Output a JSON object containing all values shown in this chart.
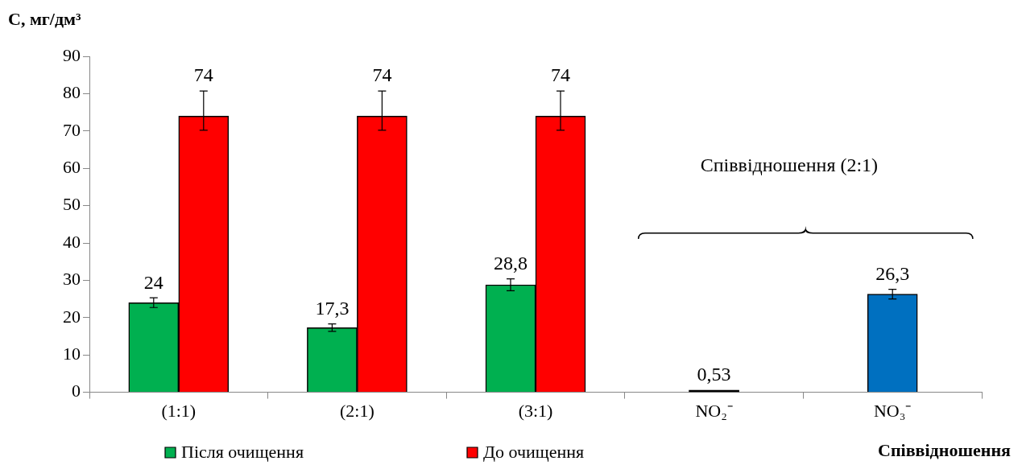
{
  "chart_data": {
    "type": "bar",
    "ylabel": "С, мг/дм³",
    "xlabel": "Співвідношення",
    "categories": [
      "(1:1)",
      "(2:1)",
      "(3:1)",
      "NO₂⁻",
      "NO₃⁻"
    ],
    "series": [
      {
        "name": "Після очищення",
        "color": "#00b050",
        "values": [
          24,
          17.3,
          28.8,
          null,
          null
        ],
        "errors": [
          [
            22.7,
            25.3
          ],
          [
            16.3,
            18.3
          ],
          [
            27.2,
            30.4
          ],
          null,
          null
        ],
        "value_labels": [
          "24",
          "17,3",
          "28,8",
          null,
          null
        ]
      },
      {
        "name": "До очищення",
        "color": "#ff0000",
        "values": [
          74,
          74,
          74,
          null,
          null
        ],
        "errors": [
          [
            70.2,
            80.7
          ],
          [
            70.2,
            80.7
          ],
          [
            70.2,
            80.7
          ],
          null,
          null
        ],
        "value_labels": [
          "74",
          "74",
          "74",
          null,
          null
        ]
      },
      {
        "colors": [
          "#000000",
          "#000000",
          "#000000",
          "#000000",
          "#0070c0"
        ],
        "values": [
          null,
          null,
          null,
          0.53,
          26.3
        ],
        "errors": [
          null,
          null,
          null,
          null,
          [
            25,
            27.6
          ]
        ],
        "value_labels": [
          null,
          null,
          null,
          "0,53",
          "26,3"
        ]
      }
    ],
    "ylim": [
      0,
      90
    ],
    "yticks": [
      0,
      10,
      20,
      30,
      40,
      50,
      60,
      70,
      80,
      90
    ],
    "grid": false,
    "legend": "bottom",
    "annotations": [
      "Співвідношення (2:1)"
    ]
  }
}
